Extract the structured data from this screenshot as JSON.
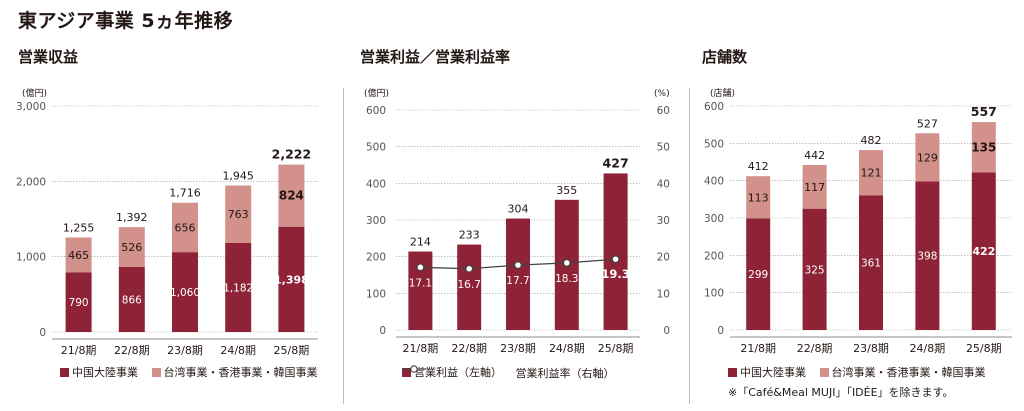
{
  "page_title": "東アジア事業 5ヵ年推移",
  "colors": {
    "primary": "#8e2236",
    "secondary": "#d2918a",
    "line": "#444444",
    "axis": "#8c8c8c"
  },
  "chart_data": [
    {
      "id": "revenue",
      "type": "bar",
      "stacked": true,
      "title": "営業収益",
      "unit_label": "(億円)",
      "categories": [
        "21/8期",
        "22/8期",
        "23/8期",
        "24/8期",
        "25/8期"
      ],
      "series": [
        {
          "name": "中国大陸事業",
          "values": [
            790,
            866,
            1060,
            1182,
            1398
          ],
          "labels": [
            "790",
            "866",
            "1,060",
            "1,182",
            "1,398"
          ]
        },
        {
          "name": "台湾事業・香港事業・韓国事業",
          "values": [
            465,
            526,
            656,
            763,
            824
          ],
          "labels": [
            "465",
            "526",
            "656",
            "763",
            "824"
          ]
        }
      ],
      "totals": [
        "1,255",
        "1,392",
        "1,716",
        "1,945",
        "2,222"
      ],
      "yticks": [
        "0",
        "1,000",
        "2,000",
        "3,000"
      ],
      "ylim": [
        0,
        3000
      ]
    },
    {
      "id": "operating-profit",
      "type": "bar+line",
      "title": "営業利益／営業利益率",
      "unit_label_left": "(億円)",
      "unit_label_right": "(%)",
      "categories": [
        "21/8期",
        "22/8期",
        "23/8期",
        "24/8期",
        "25/8期"
      ],
      "bars": {
        "name": "営業利益（左軸）",
        "values": [
          214,
          233,
          304,
          355,
          427
        ],
        "labels": [
          "214",
          "233",
          "304",
          "355",
          "427"
        ]
      },
      "line": {
        "name": "営業利益率（右軸）",
        "values": [
          17.1,
          16.7,
          17.7,
          18.3,
          19.3
        ],
        "labels": [
          "17.1",
          "16.7",
          "17.7",
          "18.3",
          "19.3"
        ]
      },
      "yticks_left": [
        "0",
        "100",
        "200",
        "300",
        "400",
        "500",
        "600"
      ],
      "yticks_right": [
        "0",
        "10",
        "20",
        "30",
        "40",
        "50",
        "60"
      ],
      "ylim_left": [
        0,
        600
      ],
      "ylim_right": [
        0,
        60
      ]
    },
    {
      "id": "stores",
      "type": "bar",
      "stacked": true,
      "title": "店舗数",
      "unit_label": "(店舗)",
      "categories": [
        "21/8期",
        "22/8期",
        "23/8期",
        "24/8期",
        "25/8期"
      ],
      "series": [
        {
          "name": "中国大陸事業",
          "values": [
            299,
            325,
            361,
            398,
            422
          ],
          "labels": [
            "299",
            "325",
            "361",
            "398",
            "422"
          ]
        },
        {
          "name": "台湾事業・香港事業・韓国事業",
          "values": [
            113,
            117,
            121,
            129,
            135
          ],
          "labels": [
            "113",
            "117",
            "121",
            "129",
            "135"
          ]
        }
      ],
      "totals": [
        "412",
        "442",
        "482",
        "527",
        "557"
      ],
      "yticks": [
        "0",
        "100",
        "200",
        "300",
        "400",
        "500",
        "600"
      ],
      "ylim": [
        0,
        600
      ]
    }
  ],
  "legends": {
    "revenue": [
      "中国大陸事業",
      "台湾事業・香港事業・韓国事業"
    ],
    "operating_profit": [
      "営業利益（左軸）",
      "営業利益率（右軸）"
    ],
    "stores": [
      "中国大陸事業",
      "台湾事業・香港事業・韓国事業"
    ]
  },
  "footnote": "※「Café&Meal MUJI」「IDÉE」を除きます。"
}
